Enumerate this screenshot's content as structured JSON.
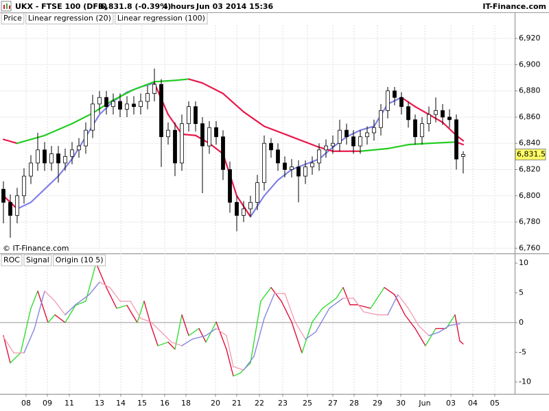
{
  "header": {
    "symbol": "UKX - FTSE 100 (DFB)",
    "last": "6,831.8 (-0.39%)",
    "interval": "4 hours",
    "timestamp": "Jun 03 2014 15:36",
    "brand": "IT-Finance.com"
  },
  "chart_data": [
    {
      "type": "candlestick",
      "name": "Price",
      "copyright": "© IT-Finance.com",
      "up_color": "#ffffff",
      "down_color": "#000000",
      "open": [
        6805,
        6795,
        6785,
        6800,
        6815,
        6825,
        6835,
        6825,
        6832,
        6825,
        6830,
        6835,
        6838,
        6850,
        6870,
        6875,
        6868,
        6872,
        6866,
        6870,
        6868,
        6872,
        6878,
        6885,
        6845,
        6850,
        6825,
        6855,
        6868,
        6855,
        6838,
        6852,
        6845,
        6820,
        6795,
        6785,
        6790,
        6795,
        6810,
        6840,
        6835,
        6825,
        6820,
        6822,
        6815,
        6822,
        6825,
        6835,
        6838,
        6840,
        6850,
        6845,
        6838,
        6845,
        6848,
        6852,
        6865,
        6880,
        6875,
        6868,
        6858,
        6845,
        6855,
        6862,
        6865,
        6860,
        6858,
        6830
      ],
      "high": [
        6811,
        6801,
        6806,
        6821,
        6831,
        6848,
        6841,
        6838,
        6838,
        6836,
        6841,
        6844,
        6856,
        6877,
        6880,
        6880,
        6878,
        6878,
        6876,
        6876,
        6878,
        6884,
        6897,
        6889,
        6856,
        6856,
        6862,
        6872,
        6872,
        6860,
        6857,
        6857,
        6850,
        6826,
        6800,
        6796,
        6800,
        6816,
        6846,
        6844,
        6840,
        6830,
        6828,
        6827,
        6827,
        6830,
        6840,
        6843,
        6846,
        6858,
        6855,
        6850,
        6850,
        6853,
        6858,
        6870,
        6883,
        6883,
        6879,
        6872,
        6862,
        6860,
        6868,
        6875,
        6870,
        6866,
        6862,
        6834
      ],
      "low": [
        6779,
        6768,
        6779,
        6794,
        6809,
        6819,
        6819,
        6819,
        6810,
        6819,
        6824,
        6829,
        6832,
        6844,
        6863,
        6862,
        6862,
        6860,
        6860,
        6862,
        6862,
        6866,
        6872,
        6822,
        6839,
        6815,
        6819,
        6849,
        6849,
        6802,
        6832,
        6839,
        6812,
        6787,
        6773,
        6780,
        6784,
        6789,
        6804,
        6829,
        6819,
        6814,
        6814,
        6795,
        6809,
        6816,
        6819,
        6829,
        6832,
        6834,
        6839,
        6832,
        6832,
        6839,
        6842,
        6846,
        6859,
        6869,
        6862,
        6852,
        6839,
        6839,
        6849,
        6856,
        6854,
        6852,
        6820,
        6817
      ],
      "close": [
        6795,
        6785,
        6800,
        6815,
        6825,
        6835,
        6825,
        6832,
        6825,
        6830,
        6835,
        6838,
        6850,
        6870,
        6875,
        6868,
        6872,
        6866,
        6870,
        6868,
        6872,
        6878,
        6885,
        6845,
        6850,
        6825,
        6855,
        6868,
        6855,
        6838,
        6852,
        6845,
        6820,
        6795,
        6785,
        6790,
        6795,
        6810,
        6840,
        6835,
        6825,
        6820,
        6822,
        6815,
        6822,
        6825,
        6835,
        6838,
        6840,
        6850,
        6845,
        6838,
        6845,
        6848,
        6852,
        6865,
        6880,
        6875,
        6868,
        6858,
        6845,
        6855,
        6862,
        6865,
        6860,
        6858,
        6828,
        6831.5
      ],
      "series": [
        {
          "name": "Linear regression (20)",
          "color": "#e8174a",
          "rising_color": "#7f7fe6",
          "x": [
            0,
            2,
            4,
            6,
            8,
            10,
            12,
            14,
            16,
            18,
            20,
            22,
            24,
            26,
            28,
            30,
            32,
            34,
            36,
            38,
            40,
            42,
            44,
            46,
            48,
            50,
            52,
            54,
            56,
            58,
            60,
            62,
            64,
            66,
            67
          ],
          "values": [
            6800,
            6790,
            6795,
            6805,
            6815,
            6828,
            6845,
            6862,
            6872,
            6879,
            6883,
            6886,
            6862,
            6847,
            6846,
            6840,
            6832,
            6800,
            6784,
            6800,
            6812,
            6820,
            6824,
            6828,
            6837,
            6845,
            6850,
            6853,
            6870,
            6875,
            6868,
            6862,
            6856,
            6846,
            6842
          ]
        },
        {
          "name": "Linear regression (100)",
          "color": "#e8174a",
          "rising_color": "#22cc22",
          "x": [
            0,
            2,
            6,
            10,
            13,
            16,
            19,
            22,
            25,
            27,
            29,
            32,
            35,
            38,
            42,
            46,
            48,
            52,
            56,
            59,
            62,
            66,
            67
          ],
          "values": [
            6843,
            6840,
            6846,
            6855,
            6863,
            6873,
            6881,
            6887,
            6888,
            6889,
            6886,
            6878,
            6864,
            6853,
            6845,
            6837,
            6834,
            6834,
            6836,
            6839,
            6840,
            6841,
            6839
          ]
        }
      ],
      "last_price": {
        "value": 6831.5,
        "label": "6,831.5"
      },
      "last_price_color": "#ffff66",
      "xlim": [
        -0.5,
        74.5
      ],
      "xticks": [
        {
          "value": 3.3,
          "label": "08"
        },
        {
          "value": 6.4,
          "label": "09"
        },
        {
          "value": 9.6,
          "label": "11"
        },
        {
          "value": 14,
          "label": "13"
        },
        {
          "value": 17.1,
          "label": "14"
        },
        {
          "value": 20.2,
          "label": "15"
        },
        {
          "value": 23.5,
          "label": "16"
        },
        {
          "value": 26.6,
          "label": "18"
        },
        {
          "value": 30.9,
          "label": "20"
        },
        {
          "value": 34,
          "label": "21"
        },
        {
          "value": 37.3,
          "label": "22"
        },
        {
          "value": 40.7,
          "label": "23"
        },
        {
          "value": 44.3,
          "label": "25"
        },
        {
          "value": 48,
          "label": "27"
        },
        {
          "value": 51.1,
          "label": "28"
        },
        {
          "value": 54.5,
          "label": "29"
        },
        {
          "value": 57.9,
          "label": "30"
        },
        {
          "value": 61.4,
          "label": "Jun"
        },
        {
          "value": 65.2,
          "label": "03"
        },
        {
          "value": 68.4,
          "label": "04"
        },
        {
          "value": 71.6,
          "label": "05"
        }
      ],
      "ylim": [
        6756,
        6930
      ],
      "yticks": [
        {
          "value": 6760,
          "label": "6,760"
        },
        {
          "value": 6780,
          "label": "6,780"
        },
        {
          "value": 6800,
          "label": "6,800"
        },
        {
          "value": 6820,
          "label": "6,820"
        },
        {
          "value": 6840,
          "label": "6,840"
        },
        {
          "value": 6860,
          "label": "6,860"
        },
        {
          "value": 6880,
          "label": "6,880"
        },
        {
          "value": 6900,
          "label": "6,900"
        },
        {
          "value": 6920,
          "label": "6,920"
        }
      ],
      "grid": true
    },
    {
      "type": "line",
      "origin_label": "Origin (10 5)",
      "series": [
        {
          "name": "ROC",
          "color": "#e0103a",
          "rising_color": "#33dd33",
          "x": [
            0,
            1,
            2.5,
            4,
            5,
            6.5,
            7.5,
            9,
            10.5,
            12,
            13.5,
            15,
            16.5,
            18,
            19.5,
            20.5,
            21.5,
            22.5,
            24,
            25,
            26,
            27,
            28.5,
            29.5,
            31,
            32.5,
            33.5,
            34.5,
            36,
            37.5,
            39,
            40.5,
            42,
            43.5,
            45,
            46.5,
            48.5,
            49.5,
            50.5,
            51.5,
            53.5,
            55.5,
            57,
            58.5,
            60,
            61.5,
            63,
            64.5,
            65.8,
            66.5,
            67
          ],
          "values": [
            -2.2,
            -6.8,
            -5.1,
            2.4,
            5.3,
            0,
            1.3,
            0,
            2.9,
            3.6,
            10,
            5.9,
            2.4,
            2.9,
            0,
            3.6,
            -0.5,
            -3.9,
            -3.3,
            -4.5,
            1.3,
            -2.2,
            -1,
            -3.3,
            0.1,
            -4.5,
            -9,
            -8.5,
            -6.8,
            3.6,
            5.9,
            3.6,
            0.1,
            -5.1,
            0.1,
            2.4,
            4.1,
            5.9,
            3,
            3,
            2.4,
            5.9,
            4.7,
            1.3,
            -1,
            -3.9,
            -1,
            -1,
            1.3,
            -3.1,
            -3.6
          ]
        },
        {
          "name": "Signal",
          "color": "#f4a0b4",
          "rising_color": "#8686dc",
          "x": [
            0,
            1.5,
            3,
            4.5,
            6,
            7.5,
            9,
            10.5,
            12.5,
            14,
            15.5,
            17,
            18.5,
            20,
            21.5,
            23,
            24.5,
            26,
            27.5,
            29.5,
            31,
            32.5,
            33.5,
            35,
            36.5,
            38,
            39.5,
            41,
            42.5,
            44,
            45.5,
            47.5,
            49.5,
            51,
            52.5,
            54.5,
            56,
            57.5,
            59,
            60.5,
            62,
            63.5,
            65,
            66.5
          ],
          "values": [
            -2.4,
            -5.1,
            -5.1,
            -1.1,
            5.3,
            3.6,
            1.3,
            3,
            4.7,
            6.8,
            5.9,
            3.6,
            3.6,
            0.7,
            0.1,
            -1.6,
            -3.3,
            -3.9,
            -2.8,
            -2.2,
            -1,
            -2.2,
            -7.4,
            -8,
            -5.7,
            0.7,
            4.9,
            4.9,
            0.1,
            -2.8,
            -1.6,
            2.4,
            4.1,
            4.1,
            1.8,
            1.3,
            1.3,
            4.7,
            2.4,
            -0.5,
            -2.2,
            -1.6,
            -0.5,
            -0.2
          ]
        }
      ],
      "xlim": [
        -0.5,
        74.5
      ],
      "ylim": [
        -12,
        11.4
      ],
      "yticks": [
        10,
        5,
        0,
        -5,
        -10
      ],
      "zero_line": true
    }
  ]
}
